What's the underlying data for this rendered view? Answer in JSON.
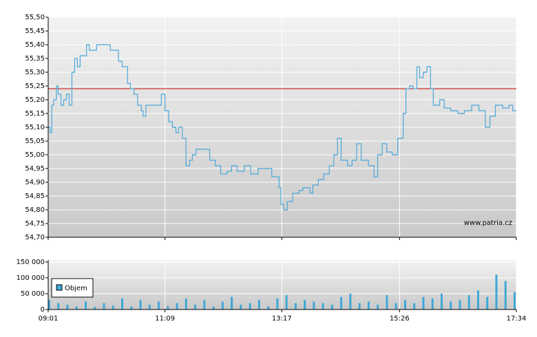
{
  "chart_data": [
    {
      "type": "line",
      "ylim": [
        54.7,
        55.5
      ],
      "yticks": [
        {
          "value": 54.7,
          "label": "54,70"
        },
        {
          "value": 54.75,
          "label": "54,75"
        },
        {
          "value": 54.8,
          "label": "54,80"
        },
        {
          "value": 54.85,
          "label": "54,85"
        },
        {
          "value": 54.9,
          "label": "54,90"
        },
        {
          "value": 54.95,
          "label": "54,95"
        },
        {
          "value": 55.0,
          "label": "55,00"
        },
        {
          "value": 55.05,
          "label": "55,05"
        },
        {
          "value": 55.1,
          "label": "55,10"
        },
        {
          "value": 55.15,
          "label": "55,15"
        },
        {
          "value": 55.2,
          "label": "55,20"
        },
        {
          "value": 55.25,
          "label": "55,25"
        },
        {
          "value": 55.3,
          "label": "55,30"
        },
        {
          "value": 55.35,
          "label": "55,35"
        },
        {
          "value": 55.4,
          "label": "55,40"
        },
        {
          "value": 55.45,
          "label": "55,45"
        },
        {
          "value": 55.5,
          "label": "55,50"
        }
      ],
      "grid": true,
      "step": true,
      "reference_line": {
        "value": 55.24,
        "color": "#cc0000"
      },
      "watermark": "www.patria.cz",
      "series": [
        {
          "color": "#4aa8d8",
          "x": [
            "09:01",
            "09:03",
            "09:05",
            "09:07",
            "09:10",
            "09:12",
            "09:15",
            "09:18",
            "09:21",
            "09:24",
            "09:27",
            "09:30",
            "09:33",
            "09:36",
            "09:39",
            "09:43",
            "09:46",
            "09:54",
            "10:05",
            "10:09",
            "10:13",
            "10:18",
            "10:22",
            "10:28",
            "10:31",
            "10:35",
            "10:39",
            "10:43",
            "10:45",
            "10:48",
            "10:54",
            "11:00",
            "11:05",
            "11:09",
            "11:13",
            "11:17",
            "11:21",
            "11:24",
            "11:28",
            "11:32",
            "11:36",
            "11:39",
            "11:43",
            "11:51",
            "11:58",
            "12:04",
            "12:10",
            "12:17",
            "12:22",
            "12:28",
            "12:36",
            "12:43",
            "12:51",
            "12:59",
            "13:06",
            "13:11",
            "13:14",
            "13:16",
            "13:19",
            "13:23",
            "13:29",
            "13:36",
            "13:40",
            "13:48",
            "13:51",
            "13:57",
            "14:03",
            "14:09",
            "14:14",
            "14:18",
            "14:22",
            "14:29",
            "14:34",
            "14:39",
            "14:44",
            "14:52",
            "14:58",
            "15:02",
            "15:07",
            "15:12",
            "15:18",
            "15:24",
            "15:30",
            "15:33",
            "15:37",
            "15:41",
            "15:45",
            "15:48",
            "15:52",
            "15:56",
            "16:00",
            "16:03",
            "16:10",
            "16:15",
            "16:22",
            "16:30",
            "16:37",
            "16:45",
            "16:53",
            "17:00",
            "17:05",
            "17:11",
            "17:19",
            "17:26",
            "17:30",
            "17:34"
          ],
          "values": [
            55.1,
            55.08,
            55.18,
            55.2,
            55.25,
            55.22,
            55.18,
            55.2,
            55.22,
            55.18,
            55.3,
            55.35,
            55.32,
            55.36,
            55.36,
            55.4,
            55.38,
            55.4,
            55.4,
            55.38,
            55.38,
            55.34,
            55.32,
            55.26,
            55.24,
            55.22,
            55.18,
            55.16,
            55.14,
            55.18,
            55.18,
            55.18,
            55.22,
            55.16,
            55.12,
            55.1,
            55.08,
            55.1,
            55.06,
            54.96,
            54.98,
            55.0,
            55.02,
            55.02,
            54.98,
            54.96,
            54.93,
            54.94,
            54.96,
            54.94,
            54.96,
            54.93,
            54.95,
            54.95,
            54.92,
            54.92,
            54.88,
            54.82,
            54.8,
            54.83,
            54.86,
            54.87,
            54.88,
            54.86,
            54.89,
            54.91,
            54.93,
            54.96,
            55.0,
            55.06,
            54.98,
            54.96,
            54.98,
            55.04,
            54.98,
            54.96,
            54.92,
            55.0,
            55.04,
            55.01,
            55.0,
            55.06,
            55.15,
            55.24,
            55.25,
            55.24,
            55.32,
            55.28,
            55.3,
            55.32,
            55.24,
            55.18,
            55.2,
            55.17,
            55.16,
            55.15,
            55.16,
            55.18,
            55.16,
            55.1,
            55.14,
            55.18,
            55.17,
            55.18,
            55.16,
            55.16
          ]
        }
      ]
    },
    {
      "type": "bar",
      "ylim": [
        0,
        150000
      ],
      "yticks": [
        0,
        {
          "value": 50000,
          "label": "50 000"
        },
        {
          "value": 100000,
          "label": "100 000"
        },
        {
          "value": 150000,
          "label": "150 000"
        }
      ],
      "grid": true,
      "legend": "upper left",
      "xlim": [
        "09:01",
        "17:34"
      ],
      "xticks": [
        "09:01",
        "11:09",
        "13:17",
        "15:26",
        "17:34"
      ],
      "series": [
        {
          "name": "Objem",
          "color": "#3fa7d6",
          "x": [
            "09:01",
            "09:11",
            "09:21",
            "09:31",
            "09:41",
            "09:51",
            "10:01",
            "10:11",
            "10:21",
            "10:31",
            "10:41",
            "10:51",
            "11:01",
            "11:11",
            "11:21",
            "11:31",
            "11:41",
            "11:51",
            "12:01",
            "12:11",
            "12:21",
            "12:31",
            "12:41",
            "12:51",
            "13:01",
            "13:11",
            "13:21",
            "13:31",
            "13:41",
            "13:51",
            "14:01",
            "14:11",
            "14:21",
            "14:31",
            "14:41",
            "14:51",
            "15:01",
            "15:11",
            "15:21",
            "15:31",
            "15:41",
            "15:51",
            "16:01",
            "16:11",
            "16:21",
            "16:31",
            "16:41",
            "16:51",
            "17:01",
            "17:11",
            "17:21",
            "17:31"
          ],
          "values": [
            30000,
            20000,
            15000,
            10000,
            25000,
            8000,
            20000,
            12000,
            35000,
            10000,
            30000,
            15000,
            25000,
            10000,
            20000,
            35000,
            15000,
            30000,
            10000,
            25000,
            40000,
            15000,
            20000,
            30000,
            10000,
            35000,
            45000,
            20000,
            30000,
            25000,
            20000,
            15000,
            40000,
            50000,
            20000,
            25000,
            15000,
            45000,
            20000,
            30000,
            20000,
            40000,
            35000,
            50000,
            25000,
            30000,
            45000,
            60000,
            40000,
            110000,
            90000,
            55000
          ]
        }
      ]
    }
  ]
}
